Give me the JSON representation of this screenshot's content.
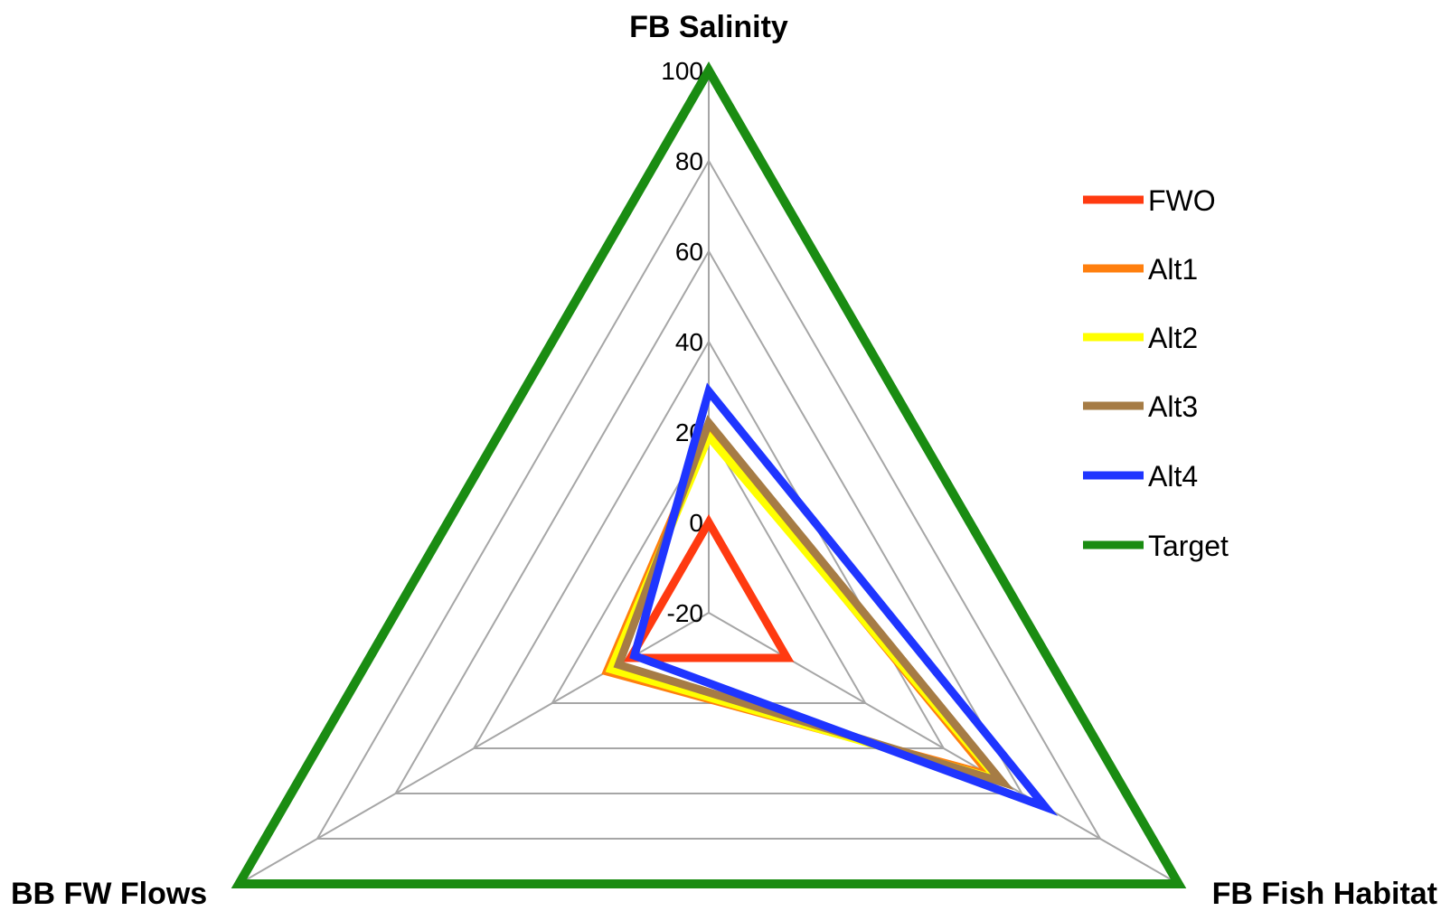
{
  "chart_data": {
    "type": "radar",
    "axes": [
      "FB Salinity",
      "FB Fish Habitat",
      "BB FW Flows"
    ],
    "ticks": [
      -20,
      0,
      20,
      40,
      60,
      80,
      100
    ],
    "tick_labels": [
      "-20",
      "0",
      "20",
      "40",
      "60",
      "80",
      "100"
    ],
    "range": [
      -20,
      100
    ],
    "grid": true,
    "legend_position": "right",
    "series": [
      {
        "name": "FWO",
        "color": "#ff3a10",
        "values": [
          0,
          0,
          0
        ]
      },
      {
        "name": "Alt1",
        "color": "#ff7f0e",
        "values": [
          20,
          52,
          6
        ]
      },
      {
        "name": "Alt2",
        "color": "#ffff00",
        "values": [
          19,
          54,
          5
        ]
      },
      {
        "name": "Alt3",
        "color": "#a67c45",
        "values": [
          22,
          55,
          3
        ]
      },
      {
        "name": "Alt4",
        "color": "#1f35ff",
        "values": [
          29,
          66,
          -1
        ]
      },
      {
        "name": "Target",
        "color": "#1a8c12",
        "values": [
          100,
          100,
          100
        ]
      }
    ]
  }
}
